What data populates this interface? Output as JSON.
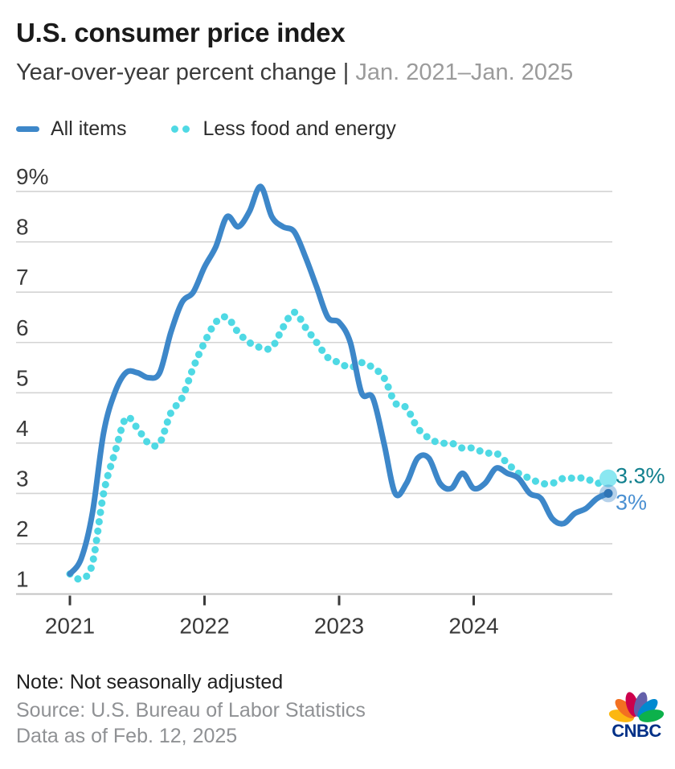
{
  "header": {
    "title": "U.S. consumer price index",
    "subtitle": "Year-over-year percent change | ",
    "subtitle_range": "Jan. 2021–Jan. 2025"
  },
  "legend": {
    "items": [
      {
        "label": "All items",
        "color": "#3d87c9",
        "style": "solid"
      },
      {
        "label": "Less food and energy",
        "color": "#4fd9e4",
        "style": "dotted"
      }
    ]
  },
  "chart_data": {
    "type": "line",
    "title": "U.S. consumer price index",
    "subtitle": "Year-over-year percent change, Jan. 2021–Jan. 2025",
    "xlabel": "",
    "ylabel": "Year-over-year percent change (%)",
    "ylim": [
      1,
      9
    ],
    "y_ticks": [
      "9%",
      "8",
      "7",
      "6",
      "5",
      "4",
      "3",
      "2",
      "1"
    ],
    "x_ticks": [
      "2021",
      "2022",
      "2023",
      "2024"
    ],
    "grid": true,
    "legend_position": "top-left",
    "categories": [
      "2021-01",
      "2021-02",
      "2021-03",
      "2021-04",
      "2021-05",
      "2021-06",
      "2021-07",
      "2021-08",
      "2021-09",
      "2021-10",
      "2021-11",
      "2021-12",
      "2022-01",
      "2022-02",
      "2022-03",
      "2022-04",
      "2022-05",
      "2022-06",
      "2022-07",
      "2022-08",
      "2022-09",
      "2022-10",
      "2022-11",
      "2022-12",
      "2023-01",
      "2023-02",
      "2023-03",
      "2023-04",
      "2023-05",
      "2023-06",
      "2023-07",
      "2023-08",
      "2023-09",
      "2023-10",
      "2023-11",
      "2023-12",
      "2024-01",
      "2024-02",
      "2024-03",
      "2024-04",
      "2024-05",
      "2024-06",
      "2024-07",
      "2024-08",
      "2024-09",
      "2024-10",
      "2024-11",
      "2024-12",
      "2025-01"
    ],
    "series": [
      {
        "name": "All items",
        "color": "#3d87c9",
        "style": "solid",
        "end_label": "3%",
        "end_label_color": "#4a90d2",
        "values": [
          1.4,
          1.7,
          2.6,
          4.2,
          5.0,
          5.4,
          5.4,
          5.3,
          5.4,
          6.2,
          6.8,
          7.0,
          7.5,
          7.9,
          8.5,
          8.3,
          8.6,
          9.1,
          8.5,
          8.3,
          8.2,
          7.7,
          7.1,
          6.5,
          6.4,
          6.0,
          5.0,
          4.9,
          4.0,
          3.0,
          3.2,
          3.7,
          3.7,
          3.2,
          3.1,
          3.4,
          3.1,
          3.2,
          3.5,
          3.4,
          3.3,
          3.0,
          2.9,
          2.5,
          2.4,
          2.6,
          2.7,
          2.9,
          3.0
        ]
      },
      {
        "name": "Less food and energy",
        "color": "#4fd9e4",
        "style": "dotted",
        "end_label": "3.3%",
        "end_label_color": "#11808e",
        "values": [
          1.4,
          1.3,
          1.6,
          3.0,
          3.8,
          4.5,
          4.3,
          4.0,
          4.0,
          4.6,
          4.9,
          5.5,
          6.0,
          6.4,
          6.5,
          6.2,
          6.0,
          5.9,
          5.9,
          6.3,
          6.6,
          6.3,
          6.0,
          5.7,
          5.6,
          5.5,
          5.6,
          5.5,
          5.3,
          4.8,
          4.7,
          4.3,
          4.1,
          4.0,
          4.0,
          3.9,
          3.9,
          3.8,
          3.8,
          3.6,
          3.4,
          3.3,
          3.2,
          3.2,
          3.3,
          3.3,
          3.3,
          3.2,
          3.3
        ]
      }
    ]
  },
  "footer": {
    "note": "Note: Not seasonally adjusted",
    "source": "Source: U.S. Bureau of Labor Statistics",
    "data_as_of": "Data as of Feb. 12, 2025"
  },
  "logo": {
    "brand": "CNBC",
    "wordmark_color": "#003087",
    "feather_colors": [
      "#FCB711",
      "#F37021",
      "#CC004C",
      "#6460AA",
      "#0089D0",
      "#0DB14B"
    ]
  },
  "colors": {
    "grid": "#d3d3d3",
    "axis_baseline": "#c3c3c3",
    "tick": "#3a3a3a",
    "axis_label": "#3a3a3a",
    "end_dot_core_blue": "#2f74b5",
    "end_dot_cyan": "#8ae7f1"
  }
}
